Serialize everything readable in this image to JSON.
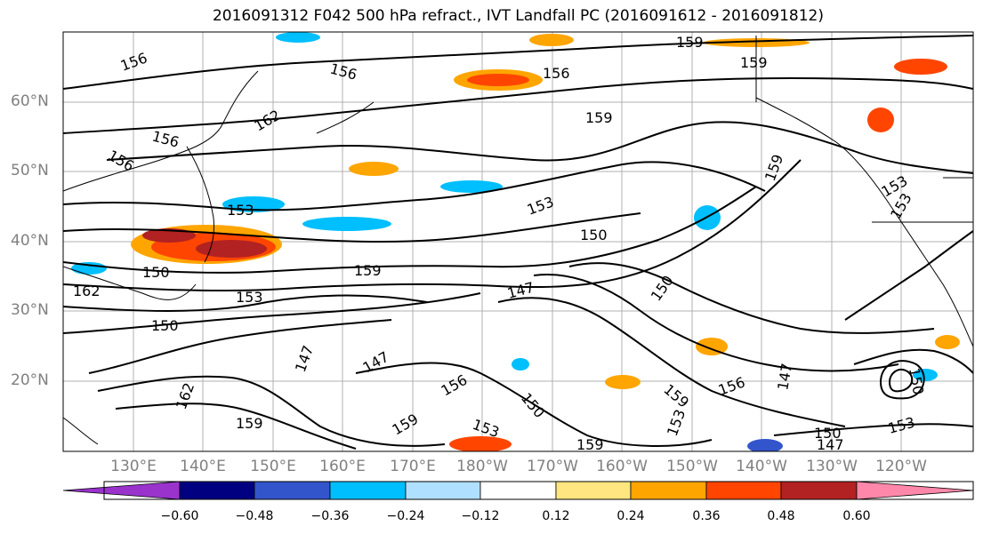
{
  "title": "2016091312 F042 500 hPa refract., IVT Landfall PC (2016091612 - 2016091812)",
  "lat_labels": [
    "60°N",
    "50°N",
    "40°N",
    "30°N",
    "20°N"
  ],
  "lon_labels": [
    "130°E",
    "140°E",
    "150°E",
    "160°E",
    "170°E",
    "180°W",
    "170°W",
    "160°W",
    "150°W",
    "140°W",
    "130°W",
    "120°W"
  ],
  "contour_labels": [
    "156",
    "159",
    "159",
    "156",
    "162",
    "156",
    "156",
    "159",
    "153",
    "153",
    "150",
    "150",
    "162",
    "159",
    "147",
    "153",
    "150",
    "147",
    "147",
    "156",
    "150",
    "159",
    "162",
    "159",
    "153",
    "150",
    "159",
    "156",
    "147",
    "150",
    "153",
    "153",
    "150",
    "147",
    "153",
    "159",
    "156",
    "153",
    "159"
  ],
  "colorbar": {
    "ticks": [
      "−0.60",
      "−0.48",
      "−0.36",
      "−0.24",
      "−0.12",
      "0.12",
      "0.24",
      "0.36",
      "0.48",
      "0.60"
    ],
    "colors": [
      "#9933cc",
      "#000080",
      "#3355cc",
      "#00bfff",
      "#b0e0ff",
      "#ffffff",
      "#ffe680",
      "#ffa500",
      "#ff4500",
      "#b22222",
      "#ff88aa"
    ]
  }
}
